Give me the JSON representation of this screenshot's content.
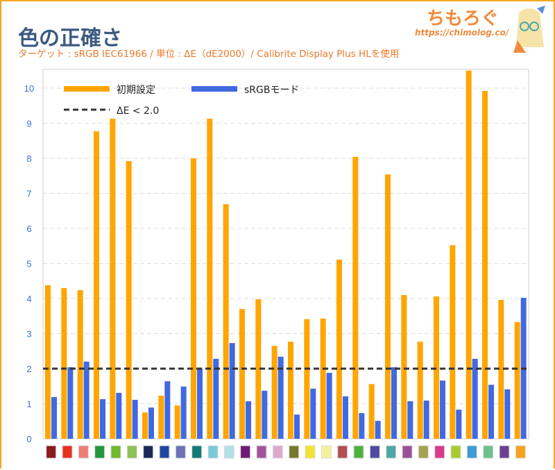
{
  "header": {
    "title": "色の正確さ",
    "subtitle": "ターゲット : sRGB IEC61966 / 単位 : ΔE（dE2000）/ Calibrite Display Plus HLを使用",
    "brand": "ちもろぐ",
    "url": "https://chimolog.co/"
  },
  "chart_data": {
    "type": "bar",
    "title": "色の正確さ",
    "xlabel": "",
    "ylabel": "ΔE",
    "ylim": [
      0,
      10.5
    ],
    "yticks": [
      "0",
      "1",
      "2",
      "3",
      "4",
      "5",
      "6",
      "7",
      "8",
      "9",
      "10"
    ],
    "grid": true,
    "legend_position": "top-left",
    "categories": [
      "#8b1a1f",
      "#e8301f",
      "#ef7b75",
      "#23973a",
      "#6fba2c",
      "#8cc256",
      "#1b2659",
      "#1f46a0",
      "#6e72b8",
      "#147a78",
      "#79cbd9",
      "#b2e0e7",
      "#6e1a78",
      "#a6529a",
      "#dba9cd",
      "#76792c",
      "#eee532",
      "#f4f1a0",
      "#b05050",
      "#4fb041",
      "#4f4c9e",
      "#4ea5a5",
      "#9b4f97",
      "#a2a44f",
      "#d93a8b",
      "#a8cb2d",
      "#3f9ad6",
      "#6ec08c",
      "#6b3f91",
      "#f5a31c"
    ],
    "series": [
      {
        "name": "初期設定",
        "color": "#ffa500",
        "values": [
          4.38,
          4.3,
          4.24,
          8.77,
          9.13,
          7.92,
          0.75,
          1.23,
          0.95,
          8.0,
          9.13,
          6.69,
          3.7,
          3.98,
          2.65,
          2.77,
          3.41,
          3.43,
          5.11,
          8.04,
          1.56,
          7.54,
          4.1,
          2.77,
          4.06,
          5.52,
          10.6,
          9.92,
          3.96,
          3.33
        ]
      },
      {
        "name": "sRGBモード",
        "color": "#4169e1",
        "values": [
          1.19,
          2.04,
          2.2,
          1.13,
          1.31,
          1.11,
          0.89,
          1.64,
          1.49,
          2.0,
          2.28,
          2.73,
          1.07,
          1.37,
          2.34,
          0.69,
          1.43,
          1.88,
          1.21,
          0.73,
          0.51,
          2.04,
          1.07,
          1.09,
          1.66,
          0.83,
          2.28,
          1.54,
          1.41,
          4.02
        ]
      }
    ],
    "reference_line": {
      "name": "ΔE < 2.0",
      "value": 2.0,
      "color": "#333333"
    }
  }
}
